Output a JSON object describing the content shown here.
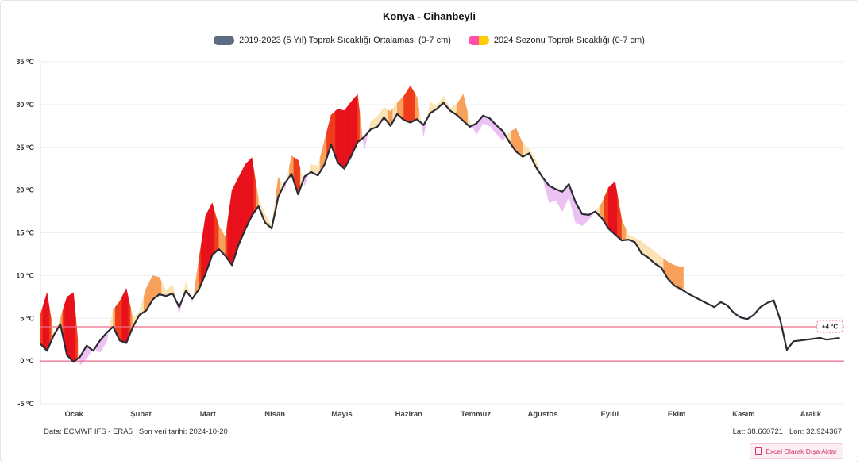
{
  "title": "Konya - Cihanbeyli",
  "legend": {
    "average_label": "2019-2023 (5 Yıl) Toprak Sıcaklığı Ortalaması (0-7 cm)",
    "season_label": "2024 Sezonu Toprak Sıcaklığı (0-7 cm)"
  },
  "footer": {
    "source": "Data: ECMWF IFS - ERA5",
    "last_update_label": "Son veri tarihi: 2024-10-20",
    "lat": "Lat: 38.660721",
    "lon": "Lon: 32.924367",
    "export_label": "Excel Olarak Dışa Aktar"
  },
  "colors": {
    "average_line": "#2b2b33",
    "warmer_low": "#fbe3b4",
    "warmer_mid": "#f7a05a",
    "warmer_high": "#ef3b1c",
    "warmer_extreme": "#e8101a",
    "cooler_low": "#ecc2f5",
    "cooler_high": "#8a2be2",
    "threshold": "#f06b8b"
  },
  "chart_data": {
    "type": "area",
    "ylim": [
      -5,
      35
    ],
    "yunit": "°C",
    "y_ticks": [
      -5,
      0,
      5,
      10,
      15,
      20,
      25,
      30,
      35
    ],
    "y_tick_labels": [
      "-5 °C",
      "0 °C",
      "5 °C",
      "10 °C",
      "15 °C",
      "20 °C",
      "25 °C",
      "30 °C",
      "35 °C"
    ],
    "months": [
      "Ocak",
      "Şubat",
      "Mart",
      "Nisan",
      "Mayıs",
      "Haziran",
      "Temmuz",
      "Ağustos",
      "Eylül",
      "Ekim",
      "Kasım",
      "Aralık"
    ],
    "threshold": {
      "value": 4,
      "label": "+4 °C"
    },
    "zero_line": 0,
    "average_series": {
      "name": "2019-2023 (5 Yıl) Toprak Sıcaklığı Ortalaması (0-7 cm)",
      "doy": [
        1,
        4,
        7,
        10,
        13,
        16,
        19,
        22,
        25,
        28,
        31,
        34,
        37,
        40,
        43,
        46,
        49,
        52,
        55,
        58,
        61,
        64,
        67,
        70,
        73,
        76,
        79,
        82,
        85,
        88,
        91,
        94,
        97,
        100,
        103,
        106,
        109,
        112,
        115,
        118,
        121,
        124,
        127,
        130,
        133,
        136,
        139,
        142,
        145,
        148,
        151,
        154,
        157,
        160,
        163,
        166,
        169,
        172,
        175,
        178,
        181,
        184,
        187,
        190,
        193,
        196,
        199,
        202,
        205,
        208,
        211,
        214,
        217,
        220,
        223,
        226,
        229,
        232,
        235,
        238,
        241,
        244,
        247,
        250,
        253,
        256,
        259,
        262,
        265,
        268,
        271,
        274,
        277,
        280,
        283,
        286,
        289,
        292,
        295,
        298,
        301,
        304,
        307,
        310,
        313,
        316,
        319,
        322,
        325,
        328,
        331,
        334,
        337,
        340,
        343,
        346,
        349,
        352,
        355,
        358,
        361,
        364
      ],
      "values": [
        2.0,
        1.2,
        3.0,
        4.3,
        0.7,
        -0.1,
        0.5,
        1.8,
        1.2,
        2.4,
        3.3,
        4.0,
        2.4,
        2.1,
        4.0,
        5.4,
        5.9,
        7.2,
        7.8,
        7.6,
        7.9,
        6.3,
        8.2,
        7.3,
        8.4,
        10.2,
        12.4,
        13.1,
        12.3,
        11.2,
        13.6,
        15.4,
        17.0,
        18.1,
        16.2,
        15.5,
        19.2,
        20.8,
        21.9,
        19.5,
        21.6,
        22.1,
        21.7,
        23.0,
        25.3,
        23.2,
        22.5,
        23.9,
        25.6,
        26.2,
        27.1,
        27.4,
        28.5,
        27.5,
        28.9,
        28.2,
        27.9,
        28.3,
        27.6,
        29.0,
        29.5,
        30.2,
        29.3,
        28.8,
        28.1,
        27.4,
        27.8,
        28.7,
        28.4,
        27.6,
        26.9,
        25.6,
        24.5,
        23.9,
        24.3,
        22.7,
        21.5,
        20.5,
        20.1,
        19.8,
        20.7,
        18.6,
        17.2,
        17.1,
        17.5,
        16.7,
        15.5,
        14.8,
        14.1,
        14.2,
        13.9,
        12.6,
        12.1,
        11.4,
        10.9,
        9.6,
        8.8,
        8.4,
        7.9,
        7.5,
        7.1,
        6.7,
        6.3,
        6.9,
        6.5,
        5.6,
        5.1,
        4.9,
        5.4,
        6.3,
        6.8,
        7.1,
        4.8,
        1.3,
        2.3,
        2.4,
        2.5,
        2.6,
        2.7,
        2.5,
        2.6,
        2.7
      ]
    },
    "season_series": {
      "name": "2024 Sezonu Toprak Sıcaklığı (0-7 cm)",
      "doy": [
        1,
        4,
        7,
        10,
        13,
        16,
        19,
        22,
        25,
        28,
        31,
        34,
        37,
        40,
        43,
        46,
        49,
        52,
        55,
        58,
        61,
        64,
        67,
        70,
        73,
        76,
        79,
        82,
        85,
        88,
        91,
        94,
        97,
        100,
        103,
        106,
        109,
        112,
        115,
        118,
        121,
        124,
        127,
        130,
        133,
        136,
        139,
        142,
        145,
        148,
        151,
        154,
        157,
        160,
        163,
        166,
        169,
        172,
        175,
        178,
        181,
        184,
        187,
        190,
        193,
        196,
        199,
        202,
        205,
        208,
        211,
        214,
        217,
        220,
        223,
        226,
        229,
        232,
        235,
        238,
        241,
        244,
        247,
        250,
        253,
        256,
        259,
        262,
        265,
        268,
        271,
        274,
        277,
        280,
        283,
        286,
        289,
        292,
        293
      ],
      "values": [
        5.5,
        8.0,
        3.0,
        5.0,
        7.5,
        8.0,
        -0.5,
        0.3,
        1.5,
        1.0,
        2.2,
        6.0,
        7.0,
        8.5,
        5.0,
        5.8,
        8.5,
        10.0,
        9.8,
        8.2,
        9.0,
        5.5,
        9.3,
        6.8,
        12.0,
        17.0,
        18.5,
        15.8,
        14.5,
        20.0,
        21.5,
        23.0,
        23.8,
        19.0,
        17.2,
        15.8,
        21.5,
        20.1,
        24.0,
        23.5,
        20.5,
        23.0,
        22.8,
        25.8,
        28.8,
        29.5,
        29.3,
        30.3,
        31.2,
        24.6,
        28.0,
        28.6,
        29.7,
        29.2,
        30.2,
        31.0,
        32.2,
        30.9,
        26.3,
        30.3,
        29.8,
        31.0,
        29.6,
        30.0,
        31.2,
        28.0,
        26.5,
        27.8,
        27.5,
        26.6,
        25.8,
        26.8,
        27.2,
        25.5,
        24.8,
        23.5,
        21.5,
        18.5,
        18.8,
        17.5,
        19.2,
        16.2,
        15.8,
        16.5,
        17.5,
        18.5,
        20.3,
        21.0,
        16.5,
        14.8,
        14.4,
        14.0,
        13.4,
        12.8,
        12.2,
        11.6,
        11.2,
        11.0,
        11.0
      ]
    }
  }
}
